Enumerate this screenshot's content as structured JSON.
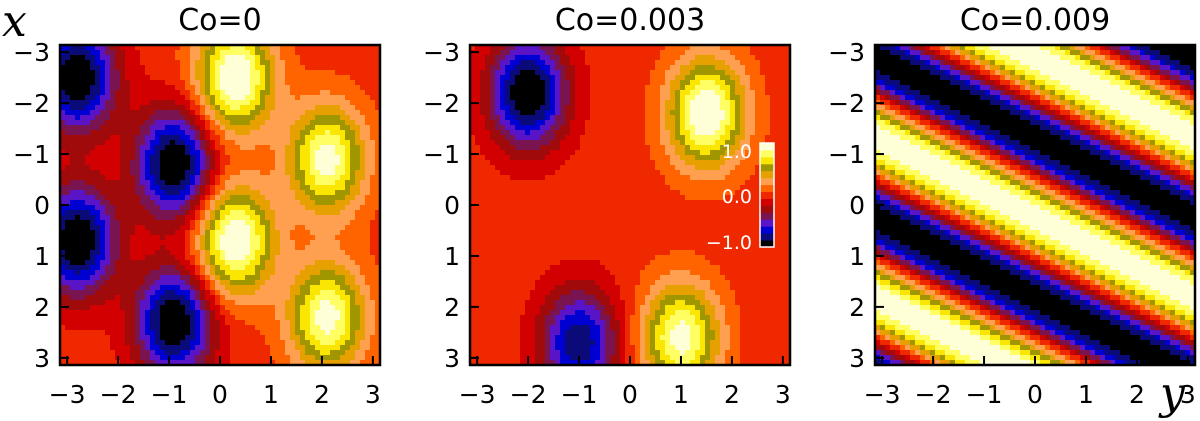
{
  "axis_labels": {
    "x": "x",
    "y": "y"
  },
  "colorbar": {
    "ticks": [
      "1.0",
      "0.0",
      "−1.0"
    ]
  },
  "palette": [
    "#000000",
    "#0a0a78",
    "#0000d2",
    "#5a14c8",
    "#7a1450",
    "#a00a0a",
    "#d20000",
    "#f02800",
    "#ff6400",
    "#ffa050",
    "#e6a000",
    "#a09600",
    "#fae600",
    "#ffff64",
    "#ffffd7"
  ],
  "chart_data": [
    {
      "type": "heatmap",
      "title": "Co=0",
      "xlabel": "y",
      "ylabel": "x",
      "xlim": [
        -3.14,
        3.14
      ],
      "ylim": [
        3.14,
        -3.14
      ],
      "xticks": [
        "−3",
        "−2",
        "−1",
        "0",
        "1",
        "2",
        "3"
      ],
      "yticks": [
        "−3",
        "−2",
        "−1",
        "0",
        "1",
        "2",
        "3"
      ],
      "zlim": [
        -1.0,
        1.0
      ],
      "extrema": [
        {
          "x": -2.5,
          "y": 0.3,
          "value": 1.0
        },
        {
          "x": 0.7,
          "y": 0.3,
          "value": 1.0
        },
        {
          "x": -0.9,
          "y": 2.1,
          "value": 0.9
        },
        {
          "x": 2.2,
          "y": 2.1,
          "value": 0.9
        },
        {
          "x": -2.5,
          "y": -2.8,
          "value": -1.0
        },
        {
          "x": 0.7,
          "y": -2.8,
          "value": -1.0
        },
        {
          "x": -0.8,
          "y": -0.9,
          "value": -1.0
        },
        {
          "x": 2.3,
          "y": -0.9,
          "value": -1.0
        }
      ]
    },
    {
      "type": "heatmap",
      "title": "Co=0.003",
      "xlabel": "y",
      "ylabel": "x",
      "xlim": [
        -3.14,
        3.14
      ],
      "ylim": [
        3.14,
        -3.14
      ],
      "xticks": [
        "−3",
        "−2",
        "−1",
        "0",
        "1",
        "2",
        "3"
      ],
      "yticks": [
        "−3",
        "−2",
        "−1",
        "0",
        "1",
        "2",
        "3"
      ],
      "zlim": [
        -1.0,
        1.0
      ],
      "extrema": [
        {
          "x": -1.8,
          "y": 1.5,
          "value": 1.0
        },
        {
          "x": 2.6,
          "y": 1.0,
          "value": 0.9
        },
        {
          "x": -2.2,
          "y": -2.0,
          "value": -1.0
        },
        {
          "x": 2.7,
          "y": -1.0,
          "value": -0.8
        }
      ]
    },
    {
      "type": "heatmap",
      "title": "Co=0.009",
      "xlabel": "y",
      "ylabel": "x",
      "xlim": [
        -3.14,
        3.14
      ],
      "ylim": [
        3.14,
        -3.14
      ],
      "xticks": [
        "−3",
        "−2",
        "−1",
        "0",
        "1",
        "2",
        "3"
      ],
      "yticks": [
        "−3",
        "−2",
        "−1",
        "0",
        "1",
        "2",
        "3"
      ],
      "zlim": [
        -1.0,
        1.0
      ],
      "pattern": "diagonal stripes, wavenumber (1, -2)"
    }
  ]
}
